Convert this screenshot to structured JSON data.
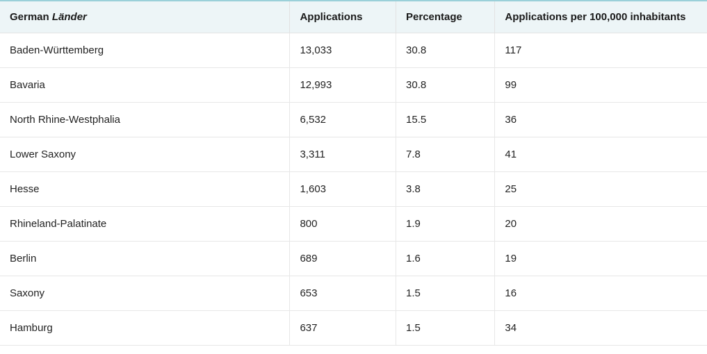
{
  "table": {
    "type": "table",
    "background_color": "#ffffff",
    "header_background": "#edf5f7",
    "header_top_border": "#9ad0d9",
    "border_color": "#e7e7e7",
    "text_color": "#222222",
    "header_fontsize": 15,
    "cell_fontsize": 15,
    "columns": [
      {
        "key": "land",
        "label_prefix": "German ",
        "label_italic": "Länder",
        "align": "left",
        "width_pct": 41
      },
      {
        "key": "applications",
        "label": "Applications",
        "align": "left",
        "width_pct": 15
      },
      {
        "key": "percentage",
        "label": "Percentage",
        "align": "left",
        "width_pct": 14
      },
      {
        "key": "per100k",
        "label": "Applications per 100,000 inhabitants",
        "align": "left",
        "width_pct": 30
      }
    ],
    "rows": [
      {
        "land": "Baden-Württemberg",
        "applications": "13,033",
        "percentage": "30.8",
        "per100k": "117"
      },
      {
        "land": "Bavaria",
        "applications": "12,993",
        "percentage": "30.8",
        "per100k": "99"
      },
      {
        "land": "North Rhine-Westphalia",
        "applications": "6,532",
        "percentage": "15.5",
        "per100k": "36"
      },
      {
        "land": "Lower Saxony",
        "applications": "3,311",
        "percentage": "7.8",
        "per100k": "41"
      },
      {
        "land": "Hesse",
        "applications": "1,603",
        "percentage": "3.8",
        "per100k": "25"
      },
      {
        "land": "Rhineland-Palatinate",
        "applications": "800",
        "percentage": "1.9",
        "per100k": "20"
      },
      {
        "land": "Berlin",
        "applications": "689",
        "percentage": "1.6",
        "per100k": "19"
      },
      {
        "land": "Saxony",
        "applications": "653",
        "percentage": "1.5",
        "per100k": "16"
      },
      {
        "land": "Hamburg",
        "applications": "637",
        "percentage": "1.5",
        "per100k": "34"
      }
    ]
  }
}
